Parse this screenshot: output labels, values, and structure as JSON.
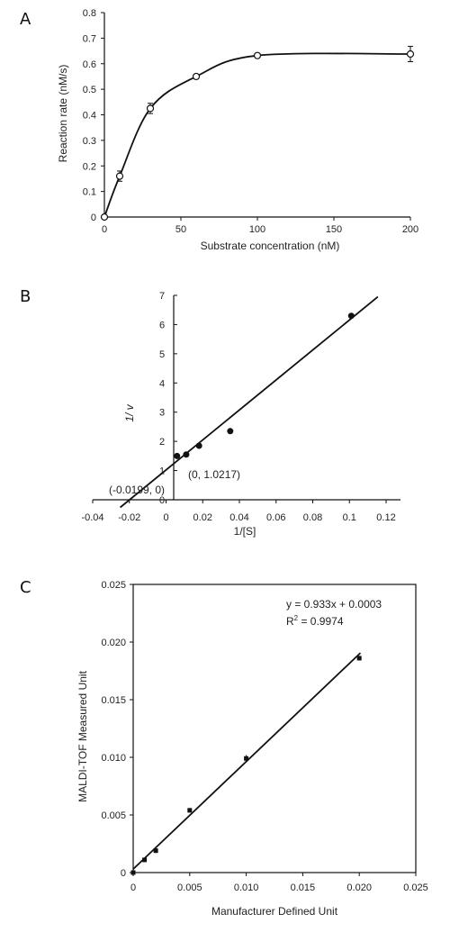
{
  "chart_data": [
    {
      "panel": "A",
      "type": "line",
      "x": [
        0,
        10,
        30,
        60,
        100,
        200
      ],
      "y": [
        0,
        0.16,
        0.425,
        0.55,
        0.632,
        0.638
      ],
      "yerr": [
        0,
        0.02,
        0.02,
        0.005,
        0.005,
        0.03
      ],
      "xlabel": "Substrate concentration (nM)",
      "ylabel": "Reaction rate (nM/s)",
      "xlim": [
        0,
        200
      ],
      "ylim": [
        0,
        0.8
      ],
      "xticks": [
        "0",
        "50",
        "100",
        "150",
        "200"
      ],
      "yticks": [
        "0",
        "0.1",
        "0.2",
        "0.3",
        "0.4",
        "0.5",
        "0.6",
        "0.7",
        "0.8"
      ],
      "markers": "open-circle",
      "grid": false
    },
    {
      "panel": "B",
      "type": "scatter",
      "x": [
        0.006,
        0.011,
        0.018,
        0.035,
        0.101
      ],
      "y": [
        1.5,
        1.55,
        1.85,
        2.35,
        6.3
      ],
      "fit": {
        "x_intercept": -0.0199,
        "y_intercept": 1.0217
      },
      "xlabel": "1/[S]",
      "ylabel": "1/ v",
      "xlim": [
        -0.04,
        0.13
      ],
      "ylim": [
        0,
        7
      ],
      "xticks": [
        "-0.04",
        "-0.02",
        "0",
        "0.02",
        "0.04",
        "0.06",
        "0.08",
        "0.1",
        "0.12"
      ],
      "yticks": [
        "0",
        "1",
        "2",
        "3",
        "4",
        "5",
        "6",
        "7"
      ],
      "annotations": [
        "(-0.0199, 0)",
        "(0, 1.0217)"
      ],
      "markers": "filled-circle",
      "grid": false
    },
    {
      "panel": "C",
      "type": "scatter",
      "x": [
        0,
        0.001,
        0.002,
        0.005,
        0.01,
        0.02
      ],
      "y": [
        0,
        0.0011,
        0.0019,
        0.0054,
        0.0099,
        0.0186
      ],
      "yerr": [
        0,
        0.0001,
        0.0002,
        0.0002,
        0.0003,
        0.0002
      ],
      "fit": {
        "slope": 0.933,
        "intercept": 0.0003
      },
      "equation": "y = 0.933x + 0.0003",
      "r2_label": "R",
      "r2_sup": "2",
      "r2_value": " = 0.9974",
      "xlabel": "Manufacturer Defined Unit",
      "ylabel": "MALDI-TOF Measured Unit",
      "xlim": [
        0,
        0.025
      ],
      "ylim": [
        0,
        0.025
      ],
      "xticks": [
        "0",
        "0.005",
        "0.010",
        "0.015",
        "0.020",
        "0.025"
      ],
      "yticks": [
        "0",
        "0.005",
        "0.010",
        "0.015",
        "0.020",
        "0.025"
      ],
      "markers": "filled-square",
      "grid": false
    }
  ]
}
